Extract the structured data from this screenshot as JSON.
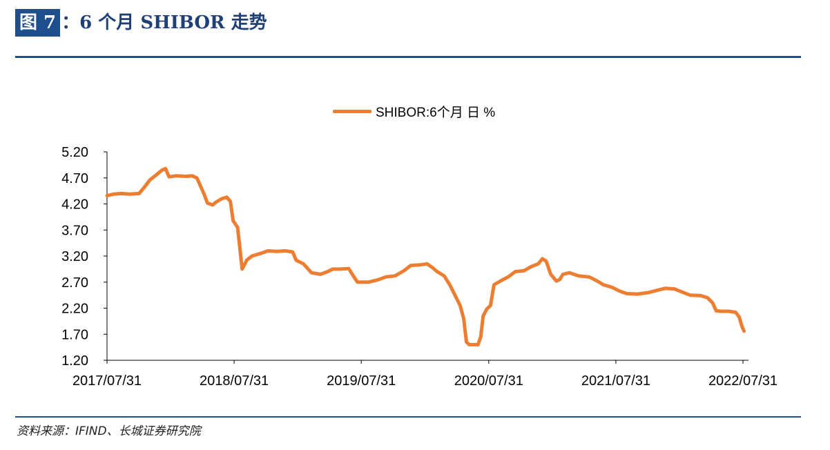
{
  "header": {
    "badge": "图 7",
    "title": "：6 个月 SHIBOR 走势"
  },
  "footer": {
    "source": "资料来源：IFIND、长城证券研究院"
  },
  "colors": {
    "series": "#ed7d31",
    "accent": "#1f4e8c"
  },
  "chart_data": {
    "type": "line",
    "title": "",
    "xlabel": "",
    "ylabel": "",
    "ylim": [
      1.2,
      5.2
    ],
    "yticks": [
      "5.20",
      "4.70",
      "4.20",
      "3.70",
      "3.20",
      "2.70",
      "2.20",
      "1.70",
      "1.20"
    ],
    "xticks": [
      "2017/07/31",
      "2018/07/31",
      "2019/07/31",
      "2020/07/31",
      "2021/07/31",
      "2022/07/31"
    ],
    "xrange": [
      "2017/07/31",
      "2022/08/15"
    ],
    "legend": "top-center",
    "grid": false,
    "series": [
      {
        "name": "SHIBOR:6个月 日 %",
        "color": "#ed7d31",
        "points": [
          [
            "2017/07/31",
            4.36
          ],
          [
            "2017/08/20",
            4.39
          ],
          [
            "2017/09/10",
            4.4
          ],
          [
            "2017/10/05",
            4.39
          ],
          [
            "2017/10/31",
            4.4
          ],
          [
            "2017/11/15",
            4.52
          ],
          [
            "2017/12/01",
            4.66
          ],
          [
            "2017/12/20",
            4.76
          ],
          [
            "2018/01/05",
            4.85
          ],
          [
            "2018/01/15",
            4.88
          ],
          [
            "2018/01/25",
            4.72
          ],
          [
            "2018/02/15",
            4.74
          ],
          [
            "2018/03/15",
            4.73
          ],
          [
            "2018/04/01",
            4.74
          ],
          [
            "2018/04/15",
            4.7
          ],
          [
            "2018/04/25",
            4.55
          ],
          [
            "2018/05/05",
            4.4
          ],
          [
            "2018/05/15",
            4.22
          ],
          [
            "2018/05/30",
            4.18
          ],
          [
            "2018/06/10",
            4.24
          ],
          [
            "2018/06/25",
            4.3
          ],
          [
            "2018/07/10",
            4.33
          ],
          [
            "2018/07/20",
            4.25
          ],
          [
            "2018/07/28",
            3.88
          ],
          [
            "2018/08/10",
            3.75
          ],
          [
            "2018/08/18",
            3.25
          ],
          [
            "2018/08/23",
            2.95
          ],
          [
            "2018/09/05",
            3.12
          ],
          [
            "2018/09/20",
            3.2
          ],
          [
            "2018/10/15",
            3.25
          ],
          [
            "2018/11/05",
            3.3
          ],
          [
            "2018/12/01",
            3.29
          ],
          [
            "2018/12/25",
            3.3
          ],
          [
            "2019/01/15",
            3.28
          ],
          [
            "2019/01/25",
            3.12
          ],
          [
            "2019/02/15",
            3.05
          ],
          [
            "2019/03/10",
            2.88
          ],
          [
            "2019/04/05",
            2.85
          ],
          [
            "2019/04/25",
            2.9
          ],
          [
            "2019/05/10",
            2.95
          ],
          [
            "2019/06/01",
            2.95
          ],
          [
            "2019/06/25",
            2.96
          ],
          [
            "2019/07/10",
            2.8
          ],
          [
            "2019/07/20",
            2.7
          ],
          [
            "2019/08/20",
            2.7
          ],
          [
            "2019/09/15",
            2.74
          ],
          [
            "2019/10/10",
            2.8
          ],
          [
            "2019/11/05",
            2.82
          ],
          [
            "2019/12/01",
            2.92
          ],
          [
            "2019/12/20",
            3.02
          ],
          [
            "2020/01/15",
            3.03
          ],
          [
            "2020/02/05",
            3.05
          ],
          [
            "2020/02/20",
            2.98
          ],
          [
            "2020/03/05",
            2.9
          ],
          [
            "2020/03/25",
            2.82
          ],
          [
            "2020/04/10",
            2.65
          ],
          [
            "2020/04/25",
            2.45
          ],
          [
            "2020/05/10",
            2.25
          ],
          [
            "2020/05/20",
            2.0
          ],
          [
            "2020/05/28",
            1.55
          ],
          [
            "2020/06/05",
            1.5
          ],
          [
            "2020/06/30",
            1.5
          ],
          [
            "2020/07/08",
            1.65
          ],
          [
            "2020/07/15",
            2.05
          ],
          [
            "2020/07/25",
            2.18
          ],
          [
            "2020/08/05",
            2.25
          ],
          [
            "2020/08/15",
            2.65
          ],
          [
            "2020/09/05",
            2.73
          ],
          [
            "2020/09/25",
            2.8
          ],
          [
            "2020/10/15",
            2.9
          ],
          [
            "2020/11/10",
            2.92
          ],
          [
            "2020/12/01",
            3.0
          ],
          [
            "2020/12/20",
            3.05
          ],
          [
            "2021/01/01",
            3.15
          ],
          [
            "2021/01/12",
            3.1
          ],
          [
            "2021/01/25",
            2.85
          ],
          [
            "2021/02/10",
            2.72
          ],
          [
            "2021/02/20",
            2.75
          ],
          [
            "2021/03/01",
            2.85
          ],
          [
            "2021/03/20",
            2.88
          ],
          [
            "2021/04/15",
            2.82
          ],
          [
            "2021/05/15",
            2.8
          ],
          [
            "2021/06/05",
            2.73
          ],
          [
            "2021/06/25",
            2.65
          ],
          [
            "2021/07/20",
            2.6
          ],
          [
            "2021/08/10",
            2.53
          ],
          [
            "2021/08/31",
            2.48
          ],
          [
            "2021/10/01",
            2.47
          ],
          [
            "2021/11/01",
            2.5
          ],
          [
            "2021/12/01",
            2.55
          ],
          [
            "2021/12/20",
            2.58
          ],
          [
            "2022/01/15",
            2.57
          ],
          [
            "2022/02/10",
            2.5
          ],
          [
            "2022/03/01",
            2.45
          ],
          [
            "2022/04/01",
            2.44
          ],
          [
            "2022/04/20",
            2.4
          ],
          [
            "2022/05/05",
            2.3
          ],
          [
            "2022/05/15",
            2.15
          ],
          [
            "2022/05/30",
            2.14
          ],
          [
            "2022/06/20",
            2.14
          ],
          [
            "2022/07/10",
            2.12
          ],
          [
            "2022/07/20",
            2.03
          ],
          [
            "2022/07/28",
            1.85
          ],
          [
            "2022/08/03",
            1.76
          ]
        ]
      }
    ]
  }
}
